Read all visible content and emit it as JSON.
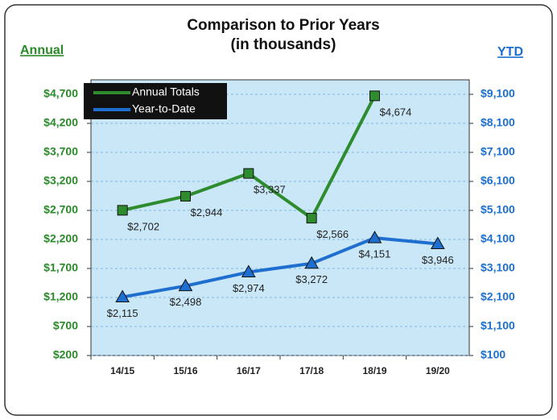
{
  "chart_data": {
    "type": "line",
    "title": "Comparison to Prior Years",
    "subtitle": "(in thousands)",
    "y_label": "Annual",
    "y2_label": "YTD",
    "categories": [
      "14/15",
      "15/16",
      "16/17",
      "17/18",
      "18/19",
      "19/20"
    ],
    "series": [
      {
        "name": "Annual Totals",
        "color": "#2e8b2e",
        "marker": "square",
        "values": [
          2702,
          2944,
          3337,
          2566,
          4674,
          null
        ],
        "value_labels": [
          "$2,702",
          "$2,944",
          "$3,337",
          "$2,566",
          "$4,674",
          null
        ]
      },
      {
        "name": "Year-to-Date",
        "color": "#1f6fd0",
        "marker": "triangle",
        "axis": "y2",
        "values": [
          2115,
          2498,
          2974,
          3272,
          4151,
          3946
        ],
        "value_labels": [
          "$2,115",
          "$2,498",
          "$2,974",
          "$3,272",
          "$4,151",
          "$3,946"
        ]
      }
    ],
    "ylim": [
      200,
      4950
    ],
    "yticks": [
      {
        "value": 200,
        "label": "$200"
      },
      {
        "value": 700,
        "label": "$700"
      },
      {
        "value": 1200,
        "label": "$1,200"
      },
      {
        "value": 1700,
        "label": "$1,700"
      },
      {
        "value": 2200,
        "label": "$2,200"
      },
      {
        "value": 2700,
        "label": "$2,700"
      },
      {
        "value": 3200,
        "label": "$3,200"
      },
      {
        "value": 3700,
        "label": "$3,700"
      },
      {
        "value": 4200,
        "label": "$4,200"
      },
      {
        "value": 4700,
        "label": "$4,700"
      }
    ],
    "y2lim": [
      100,
      9600
    ],
    "y2ticks": [
      {
        "value": 100,
        "label": "$100"
      },
      {
        "value": 1100,
        "label": "$1,100"
      },
      {
        "value": 2100,
        "label": "$2,100"
      },
      {
        "value": 3100,
        "label": "$3,100"
      },
      {
        "value": 4100,
        "label": "$4,100"
      },
      {
        "value": 5100,
        "label": "$5,100"
      },
      {
        "value": 6100,
        "label": "$6,100"
      },
      {
        "value": 7100,
        "label": "$7,100"
      },
      {
        "value": 8100,
        "label": "$8,100"
      },
      {
        "value": 9100,
        "label": "$9,100"
      }
    ],
    "grid": true,
    "legend": "upper left",
    "plot_background": "#c9e7f6"
  }
}
